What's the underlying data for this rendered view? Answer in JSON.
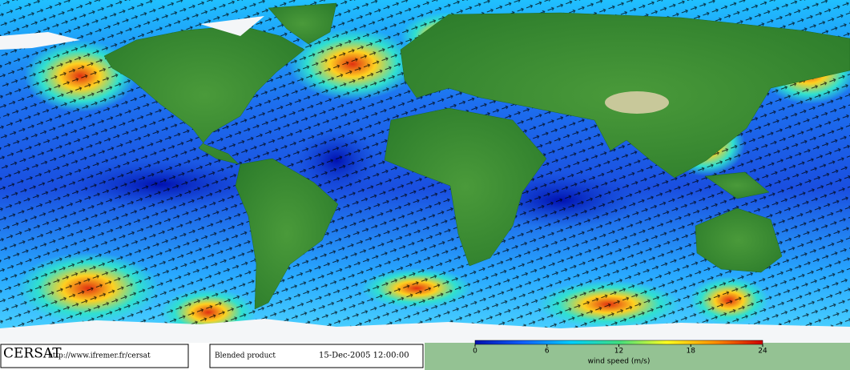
{
  "footer": {
    "logo": "CERSAT",
    "url": "http://www.ifremer.fr/cersat",
    "product": "Blended product",
    "date": "15-Dec-2005 12:00:00"
  },
  "colorbar": {
    "label": "wind speed (m/s)",
    "lim": [
      0,
      24
    ],
    "ticks": [
      0,
      6,
      12,
      18,
      24
    ],
    "colors": [
      "#0010b0",
      "#1060ff",
      "#00d0ff",
      "#40e080",
      "#ffff20",
      "#ff9000",
      "#d00000"
    ]
  }
}
